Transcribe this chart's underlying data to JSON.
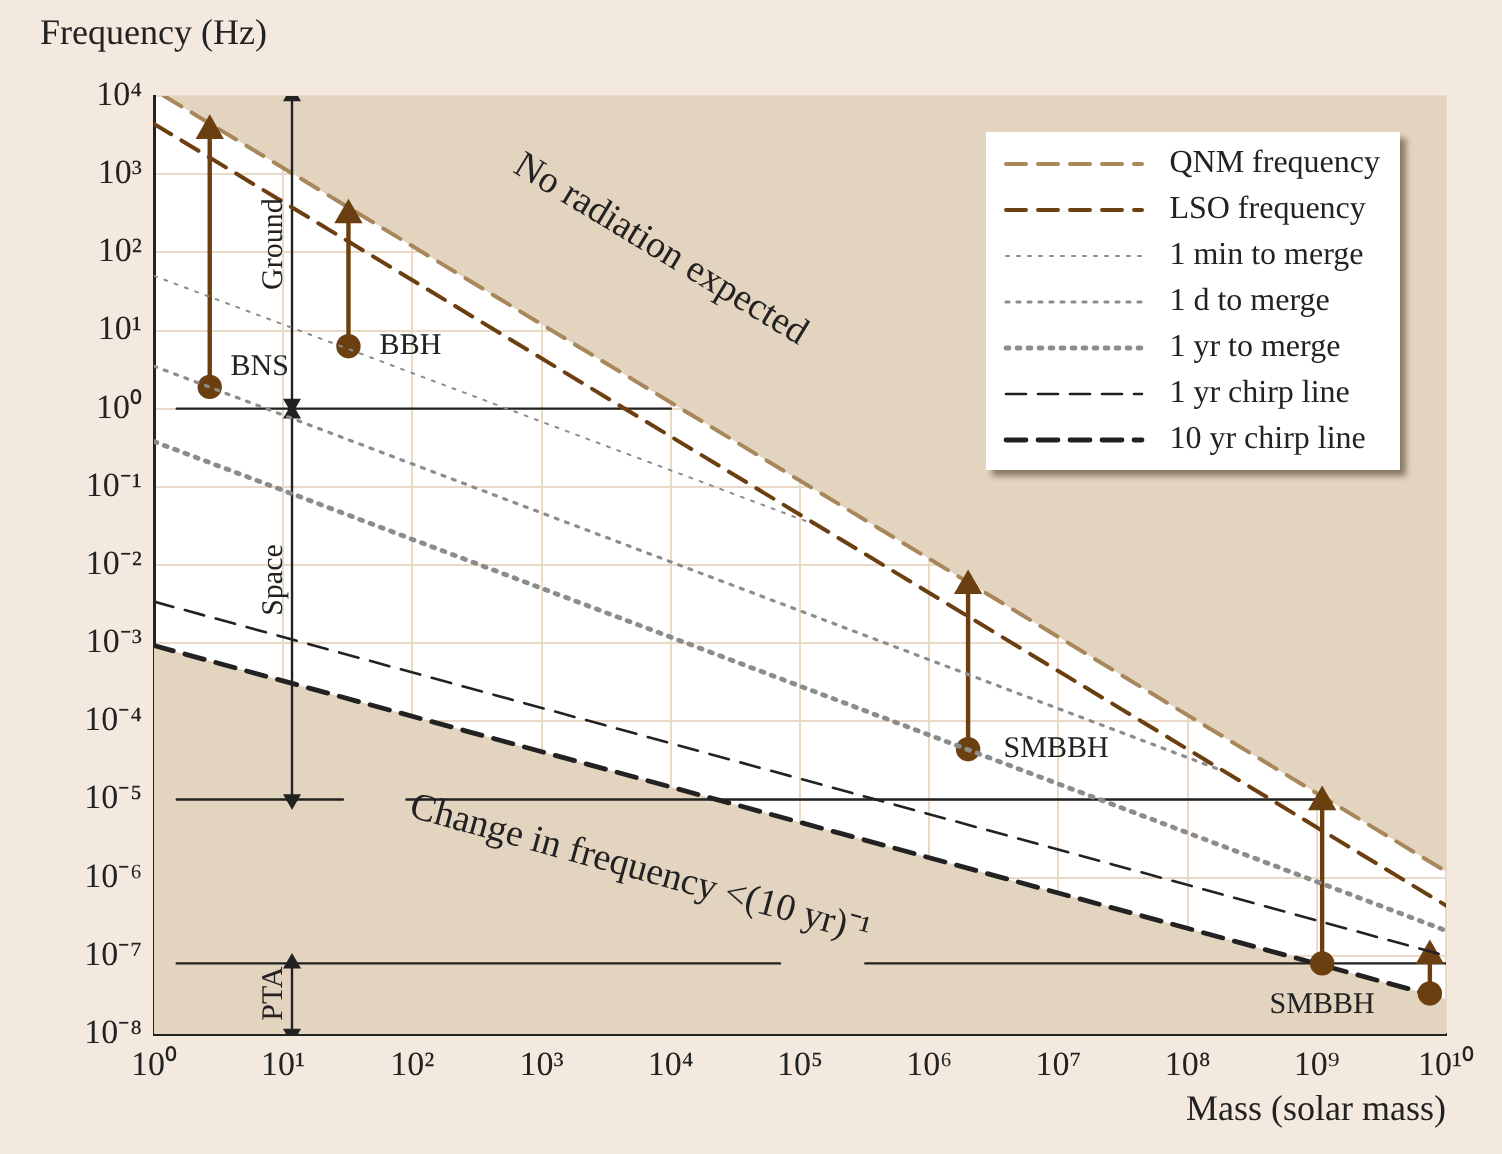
{
  "chart_data": {
    "type": "line",
    "xlabel": "Mass (solar mass)",
    "ylabel": "Frequency (Hz)",
    "log": "xy",
    "grid": true,
    "legend": "top right",
    "xlim": [
      1,
      10000000000.0
    ],
    "ylim": [
      1e-08,
      10000.0
    ],
    "xticks": [
      {
        "value": 1,
        "label": "10⁰"
      },
      {
        "value": 10,
        "label": "10¹"
      },
      {
        "value": 100,
        "label": "10²"
      },
      {
        "value": 1000,
        "label": "10³"
      },
      {
        "value": 10000.0,
        "label": "10⁴"
      },
      {
        "value": 100000.0,
        "label": "10⁵"
      },
      {
        "value": 1000000.0,
        "label": "10⁶"
      },
      {
        "value": 10000000.0,
        "label": "10⁷"
      },
      {
        "value": 100000000.0,
        "label": "10⁸"
      },
      {
        "value": 1000000000.0,
        "label": "10⁹"
      },
      {
        "value": 10000000000.0,
        "label": "10¹⁰"
      }
    ],
    "yticks": [
      {
        "value": 1e-08,
        "label": "10⁻⁸"
      },
      {
        "value": 1e-07,
        "label": "10⁻⁷"
      },
      {
        "value": 1e-06,
        "label": "10⁻⁶"
      },
      {
        "value": 1e-05,
        "label": "10⁻⁵"
      },
      {
        "value": 0.0001,
        "label": "10⁻⁴"
      },
      {
        "value": 0.001,
        "label": "10⁻³"
      },
      {
        "value": 0.01,
        "label": "10⁻²"
      },
      {
        "value": 0.1,
        "label": "10⁻¹"
      },
      {
        "value": 1,
        "label": "10⁰"
      },
      {
        "value": 10,
        "label": "10¹"
      },
      {
        "value": 100,
        "label": "10²"
      },
      {
        "value": 1000,
        "label": "10³"
      },
      {
        "value": 10000.0,
        "label": "10⁴"
      }
    ],
    "series": [
      {
        "name": "QNM frequency",
        "color": "#a8875a",
        "line_style": "dashed",
        "marker": "none",
        "x": [
          1.2,
          10000000000.0
        ],
        "values": [
          10000,
          1.2e-06
        ]
      },
      {
        "name": "LSO frequency",
        "color": "#6b3f10",
        "line_style": "dashed",
        "marker": "none",
        "x": [
          1,
          10000000000.0
        ],
        "values": [
          4400,
          4.4e-07
        ]
      },
      {
        "name": "1 min to merge",
        "color": "#8c8c8c",
        "line_style": "dotted",
        "marker": "none",
        "x": [
          1,
          130000
        ],
        "values": [
          50,
          0.033
        ]
      },
      {
        "name": "1 d to merge",
        "color": "#8c8c8c",
        "line_style": "dotted",
        "marker": "none",
        "x": [
          1,
          190000000.0
        ],
        "values": [
          3.5,
          2.3e-05
        ]
      },
      {
        "name": "1 yr to merge",
        "color": "#8c8c8c",
        "line_style": "dotted",
        "marker": "none",
        "x": [
          1,
          10000000000.0
        ],
        "values": [
          0.38,
          2.1e-07
        ]
      },
      {
        "name": "1 yr chirp line",
        "color": "#222222",
        "line_style": "dashed",
        "marker": "none",
        "x": [
          1,
          10000000000.0
        ],
        "values": [
          0.0034,
          1e-07
        ]
      },
      {
        "name": "10 yr chirp line",
        "type": "area",
        "color": "#222222",
        "line_style": "dashed",
        "marker": "none",
        "x": [
          1,
          10000000000.0
        ],
        "values": [
          0.00093,
          2.8e-08
        ]
      },
      {
        "color": "#6b3f10",
        "line_style": "solid",
        "marker": "circle",
        "x": [
          2.7,
          2.7
        ],
        "values": [
          1.9,
          3600
        ]
      },
      {
        "color": "#6b3f10",
        "line_style": "solid",
        "marker": "circle",
        "x": [
          32,
          32
        ],
        "values": [
          6.3,
          300
        ]
      },
      {
        "color": "#6b3f10",
        "line_style": "solid",
        "marker": "circle",
        "x": [
          2000000.0,
          2000000.0
        ],
        "values": [
          4.4e-05,
          0.0054
        ]
      },
      {
        "color": "#6b3f10",
        "line_style": "solid",
        "marker": "circle",
        "x": [
          1100000000.0,
          1100000000.0
        ],
        "values": [
          8e-08,
          9.3e-06
        ]
      },
      {
        "color": "#6b3f10",
        "line_style": "solid",
        "marker": "circle",
        "x": [
          7500000000.0,
          7500000000.0
        ],
        "values": [
          3.3e-08,
          1e-07
        ]
      },
      {
        "color": "#222222",
        "line_style": "solid",
        "marker": "none",
        "x": [
          1.5,
          10000
        ],
        "values": [
          1,
          1
        ]
      },
      {
        "color": "#222222",
        "line_style": "solid",
        "marker": "none",
        "x": [
          1.5,
          29,
          50,
          90,
          1100000000.0
        ],
        "values": [
          1e-05,
          1e-05,
          null,
          1e-05,
          1e-05
        ]
      },
      {
        "color": "#222222",
        "line_style": "solid",
        "marker": "none",
        "x": [
          1.5,
          70000,
          150000,
          320000,
          10000000000.0
        ],
        "values": [
          8e-08,
          8e-08,
          null,
          8e-08,
          8e-08
        ]
      },
      {
        "color": "#222222",
        "line_style": "solid",
        "marker": "triangle",
        "x": [
          11.7,
          11.7
        ],
        "values": [
          1.15,
          10000
        ]
      },
      {
        "color": "#222222",
        "line_style": "solid",
        "marker": "triangle",
        "x": [
          11.7,
          11.7
        ],
        "values": [
          1e-05,
          0.87
        ]
      },
      {
        "color": "#222222",
        "line_style": "solid",
        "marker": "triangle",
        "x": [
          11.7,
          11.7
        ],
        "values": [
          1e-08,
          8e-08
        ]
      }
    ],
    "annotations": [
      "No radiation expected",
      "Change in frequency <(10 yr)⁻¹",
      {
        "text": "BNS",
        "x": 2.7,
        "y": 1.9
      },
      {
        "text": "BBH",
        "x": 32,
        "y": 6.3
      },
      {
        "text": "SMBBH",
        "x": 2000000.0,
        "y": 4.4e-05
      },
      {
        "text": "SMBBH",
        "x": 1100000000.0,
        "y": 8e-08
      },
      "Ground",
      "Space",
      "PTA"
    ]
  }
}
